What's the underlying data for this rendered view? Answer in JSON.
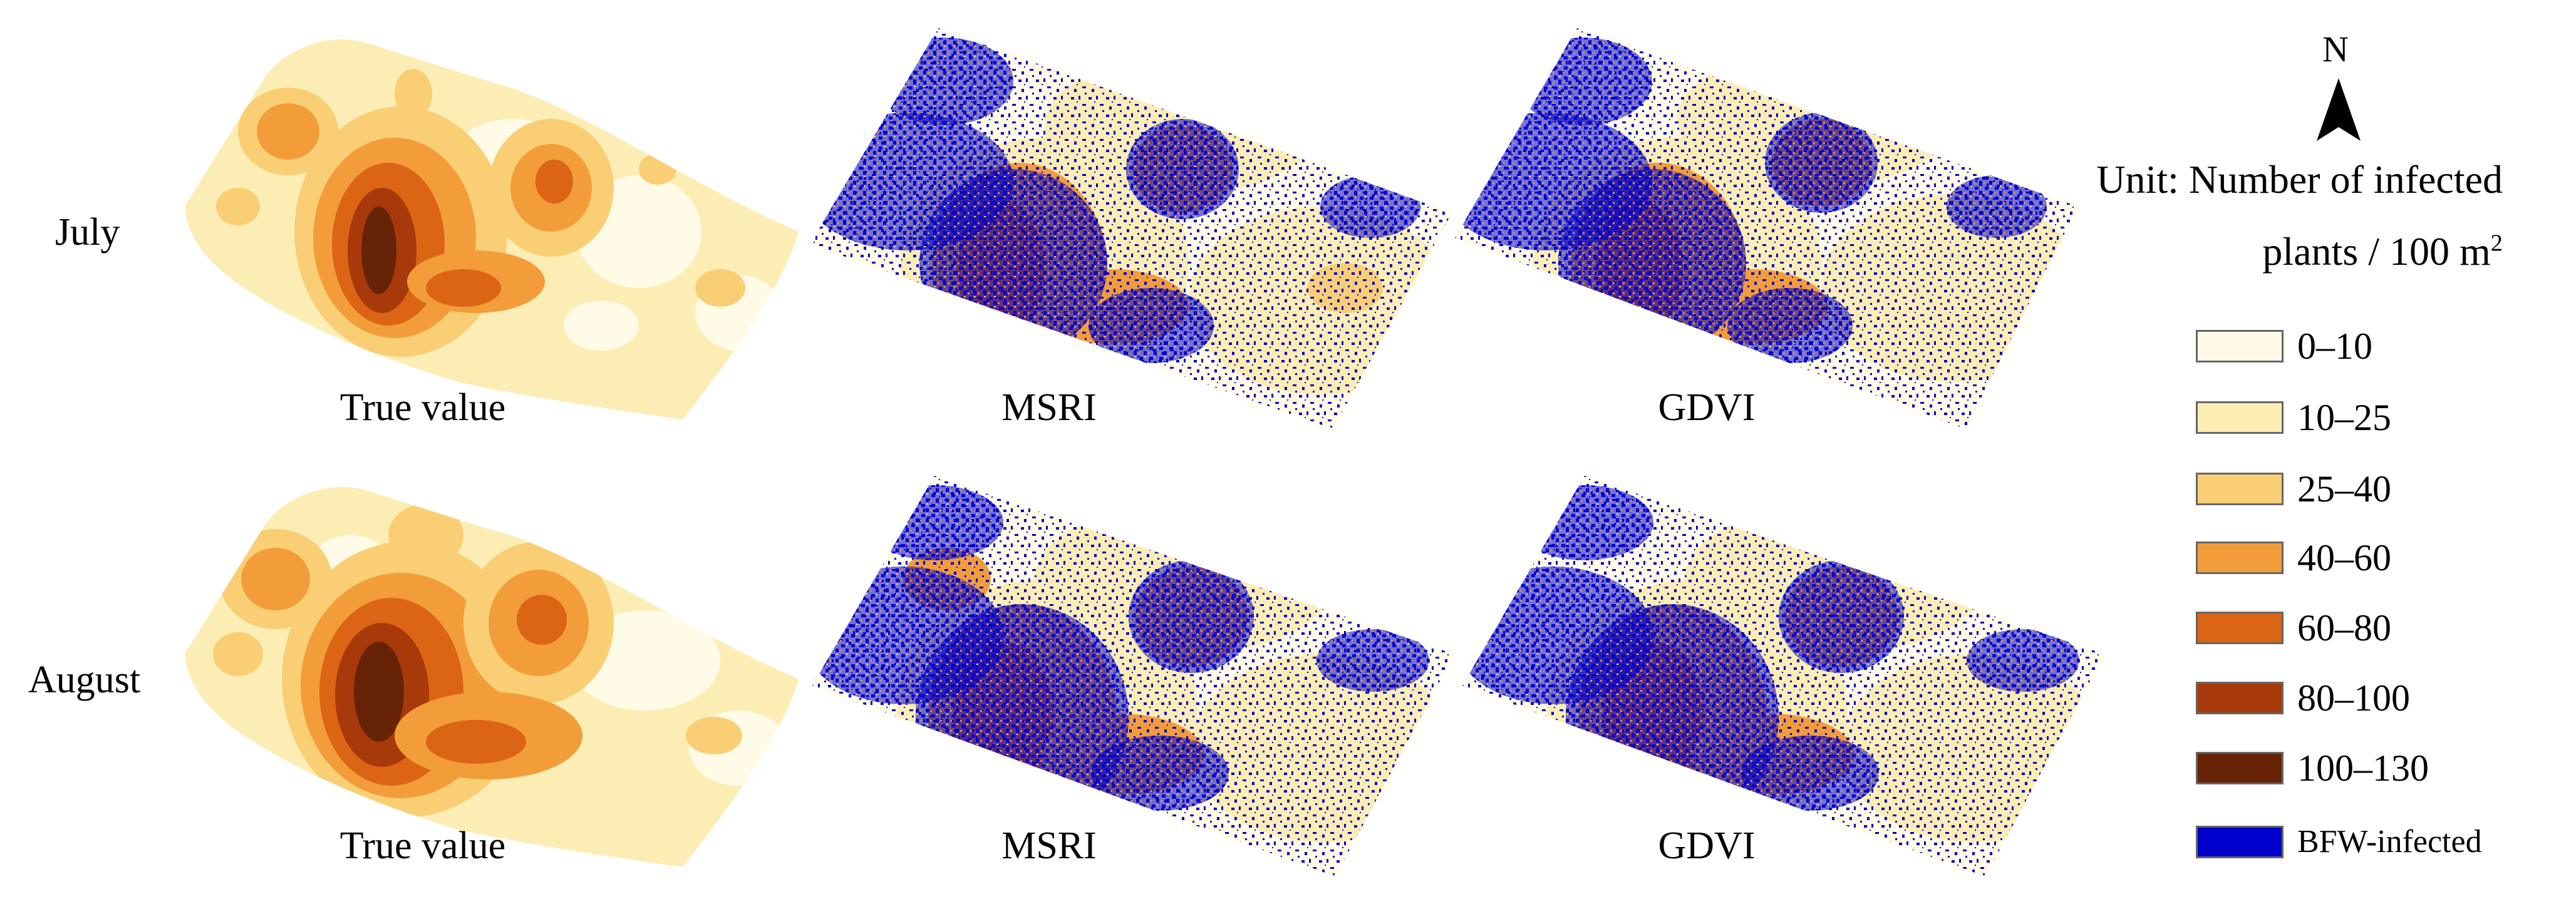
{
  "figure": {
    "rows": [
      {
        "label": "July"
      },
      {
        "label": "August"
      }
    ],
    "columns": [
      {
        "caption": "True value"
      },
      {
        "caption": "MSRI"
      },
      {
        "caption": "GDVI"
      }
    ],
    "north_arrow": {
      "label": "N"
    },
    "unit": {
      "line1": "Unit: Number of infected",
      "line2": "plants / 100 m",
      "line2_superscript": "2"
    },
    "legend": [
      {
        "label": "0–10",
        "color": "#FFFBE6"
      },
      {
        "label": "10–25",
        "color": "#FCEDB5"
      },
      {
        "label": "25–40",
        "color": "#F9CE74"
      },
      {
        "label": "40–60",
        "color": "#F29D3A"
      },
      {
        "label": "60–80",
        "color": "#DB6515"
      },
      {
        "label": "80–100",
        "color": "#A8390A"
      },
      {
        "label": "100–130",
        "color": "#672306"
      },
      {
        "label": "BFW-infected",
        "color": "#0000CC"
      }
    ]
  }
}
